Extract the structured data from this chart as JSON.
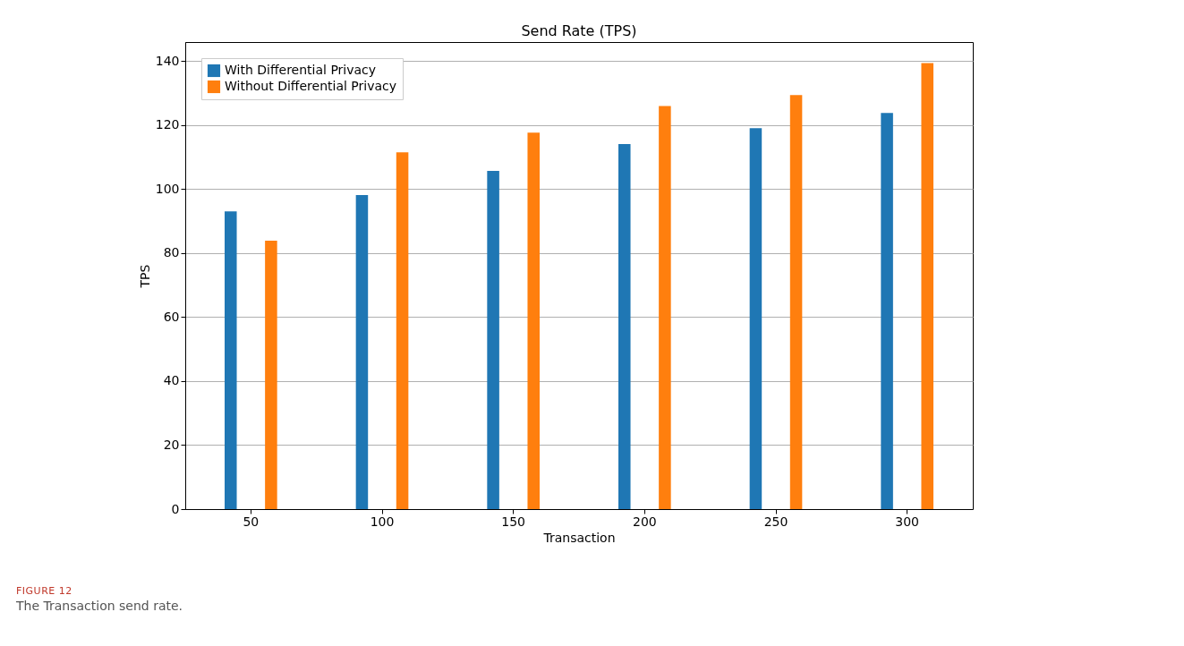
{
  "chart_data": {
    "type": "bar",
    "title": "Send Rate (TPS)",
    "xlabel": "Transaction",
    "ylabel": "TPS",
    "categories": [
      "50",
      "100",
      "150",
      "200",
      "250",
      "300"
    ],
    "series": [
      {
        "name": "With Differential Privacy",
        "color": "#1f77b4",
        "values": [
          93.1,
          98.2,
          105.7,
          114.1,
          119.1,
          123.8
        ]
      },
      {
        "name": "Without Differential Privacy",
        "color": "#ff7f0e",
        "values": [
          83.9,
          111.5,
          117.7,
          126.0,
          129.4,
          139.4
        ]
      }
    ],
    "ylim": [
      0,
      146
    ],
    "yticks": [
      0,
      20,
      40,
      60,
      80,
      100,
      120,
      140
    ],
    "grid": "y",
    "legend": "top left",
    "annotations": [
      "FIGURE 12",
      "The Transaction send rate."
    ]
  }
}
